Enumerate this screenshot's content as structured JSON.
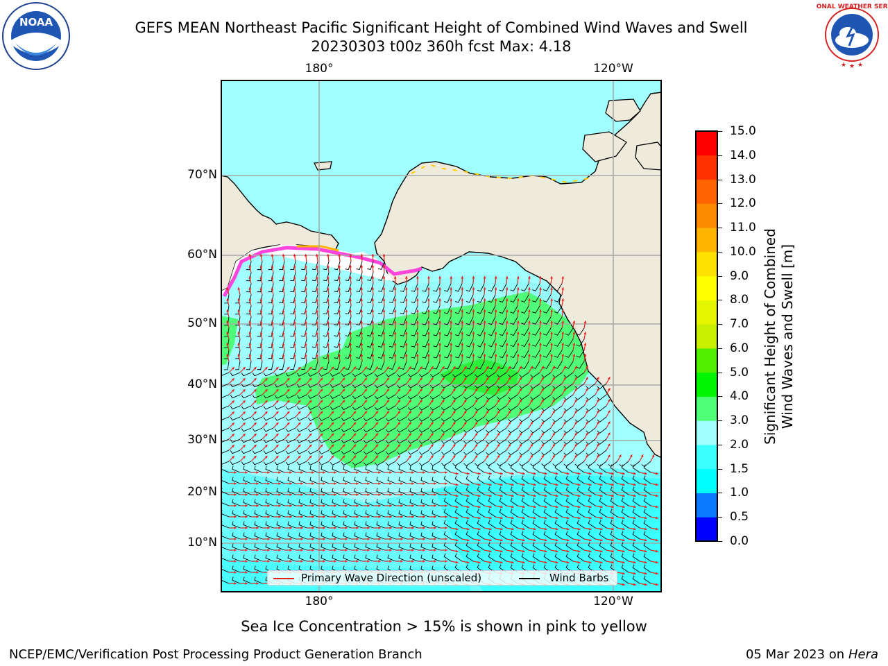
{
  "title_line1": "GEFS MEAN Northeast Pacific Significant Height of Combined Wind Waves and Swell",
  "title_line2": "20230303 t00z 360h fcst   Max: 4.18",
  "logos": {
    "left": {
      "icon": "noaa-logo-icon",
      "text": "NOAA"
    },
    "right": {
      "icon": "nws-logo-icon",
      "text": "NATIONAL WEATHER SERVICE"
    }
  },
  "map": {
    "lon_ticks": [
      "180°",
      "120°W"
    ],
    "lat_ticks": [
      "70°N",
      "60°N",
      "50°N",
      "40°N",
      "30°N",
      "20°N",
      "10°N"
    ],
    "legend": {
      "wave": "Primary Wave Direction (unscaled)",
      "wind": "Wind Barbs",
      "wave_color": "#e8201c",
      "wind_color": "#000000"
    },
    "land_color": "#efebdc",
    "grid": true
  },
  "colorbar": {
    "label_line1": "Significant Height of Combined",
    "label_line2": "Wind Waves and Swell [m]",
    "ticks": [
      "0.0",
      "0.5",
      "1.0",
      "1.5",
      "2.0",
      "3.0",
      "4.0",
      "5.0",
      "6.0",
      "7.0",
      "8.0",
      "9.0",
      "10.0",
      "11.0",
      "12.0",
      "13.0",
      "14.0",
      "15.0"
    ],
    "colors": [
      "#0000ff",
      "#0a78ff",
      "#00ffff",
      "#3cffff",
      "#a0ffff",
      "#50ff78",
      "#00f500",
      "#50f000",
      "#c8f000",
      "#e6f500",
      "#ffff00",
      "#ffe100",
      "#ffb400",
      "#ff8c00",
      "#ff6400",
      "#ff3200",
      "#ff0000"
    ]
  },
  "sea_ice_note": "Sea Ice Concentration > 15% is shown in pink to yellow",
  "footer_left": "NCEP/EMC/Verification Post Processing Product Generation Branch",
  "footer_right_date": "05 Mar 2023 on",
  "footer_right_host": "Hera"
}
